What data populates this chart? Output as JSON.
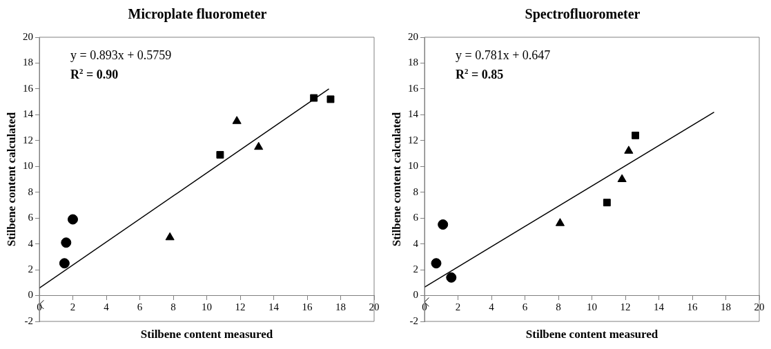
{
  "chart_data": [
    {
      "type": "scatter",
      "title": "Microplate fluorometer",
      "xlabel": "Stilbene content measured",
      "ylabel": "Stilbene content calculated",
      "annotations": [
        "y = 0.893x + 0.5759",
        "R$^{2}$ = 0.90"
      ],
      "xlim": [
        0,
        20
      ],
      "xticks": [
        0,
        2,
        4,
        6,
        8,
        10,
        12,
        14,
        16,
        18,
        20
      ],
      "ylim": [
        -2,
        20
      ],
      "yticks": [
        -2,
        0,
        2,
        4,
        6,
        8,
        10,
        12,
        14,
        16,
        18,
        20
      ],
      "grid": false,
      "legend": false,
      "series": [
        {
          "color": "#000000",
          "marker": "circle",
          "x": [
            1.5,
            1.6,
            2.0
          ],
          "values": [
            2.5,
            4.1,
            5.9
          ]
        },
        {
          "color": "#000000",
          "marker": "triangle",
          "x": [
            7.8,
            11.8,
            13.1
          ],
          "values": [
            4.5,
            13.5,
            11.5
          ]
        },
        {
          "color": "#000000",
          "marker": "square",
          "x": [
            10.8,
            16.4,
            17.4
          ],
          "values": [
            10.9,
            15.3,
            15.2
          ]
        },
        {
          "color": "#000000",
          "marker": "cross",
          "x": [
            0
          ],
          "values": [
            -0.7
          ]
        },
        {
          "type": "line",
          "color": "#000000",
          "marker": "none",
          "x": [
            0,
            17.3
          ],
          "values": [
            0.58,
            16.0
          ]
        }
      ]
    },
    {
      "type": "scatter",
      "title": "Spectrofluorometer",
      "xlabel": "Stilbene content measured",
      "ylabel": "Stilbene content calculated",
      "annotations": [
        "y = 0.781x + 0.647",
        "R$^{2}$ = 0.85"
      ],
      "xlim": [
        0,
        20
      ],
      "xticks": [
        0,
        2,
        4,
        6,
        8,
        10,
        12,
        14,
        16,
        18,
        20
      ],
      "ylim": [
        -2,
        20
      ],
      "yticks": [
        -2,
        0,
        2,
        4,
        6,
        8,
        10,
        12,
        14,
        16,
        18,
        20
      ],
      "grid": false,
      "legend": false,
      "series": [
        {
          "color": "#000000",
          "marker": "circle",
          "x": [
            0.7,
            1.1,
            1.6
          ],
          "values": [
            2.5,
            5.5,
            1.4
          ]
        },
        {
          "color": "#000000",
          "marker": "triangle",
          "x": [
            8.1,
            11.8,
            12.2
          ],
          "values": [
            5.6,
            9.0,
            11.2
          ]
        },
        {
          "color": "#000000",
          "marker": "square",
          "x": [
            10.9,
            12.6
          ],
          "values": [
            7.2,
            12.4
          ]
        },
        {
          "color": "#000000",
          "marker": "cross",
          "x": [
            0
          ],
          "values": [
            -0.5
          ]
        },
        {
          "type": "line",
          "color": "#000000",
          "marker": "none",
          "x": [
            0,
            17.3
          ],
          "values": [
            0.65,
            14.2
          ]
        }
      ]
    }
  ]
}
